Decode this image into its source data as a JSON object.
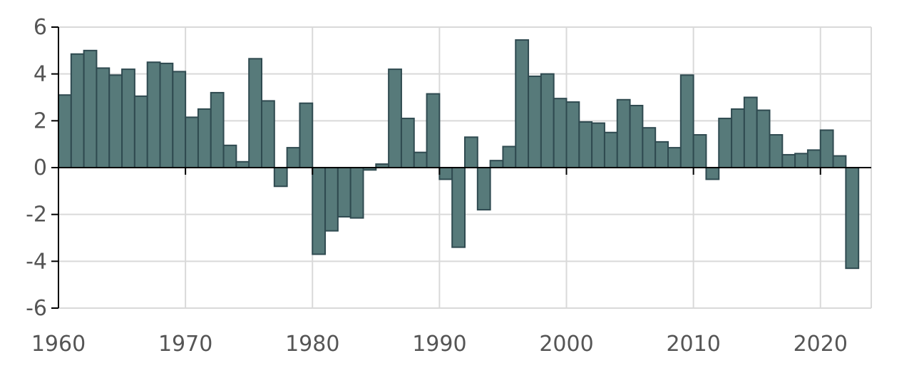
{
  "chart_data": {
    "type": "bar",
    "title": "",
    "xlabel": "",
    "ylabel": "",
    "ylim": [
      -6,
      6
    ],
    "xlim": [
      1960,
      2024
    ],
    "grid": true,
    "legend": "none",
    "x_ticks": [
      "1960",
      "1970",
      "1980",
      "1990",
      "2000",
      "2010",
      "2020"
    ],
    "y_ticks": [
      "6",
      "4",
      "2",
      "0",
      "-2",
      "-4",
      "-6"
    ],
    "colors": {
      "bar_fill": "#577a7a",
      "bar_stroke": "#2f4a50",
      "grid": "#d9d9d9",
      "axis": "#000000",
      "tick_text": "#555555"
    },
    "x": [
      1960,
      1961,
      1962,
      1963,
      1964,
      1965,
      1966,
      1967,
      1968,
      1969,
      1970,
      1971,
      1972,
      1973,
      1974,
      1975,
      1976,
      1977,
      1978,
      1979,
      1980,
      1981,
      1982,
      1983,
      1984,
      1985,
      1986,
      1987,
      1988,
      1989,
      1990,
      1991,
      1992,
      1993,
      1994,
      1995,
      1996,
      1997,
      1998,
      1999,
      2000,
      2001,
      2002,
      2003,
      2004,
      2005,
      2006,
      2007,
      2008,
      2009,
      2010,
      2011,
      2012,
      2013,
      2014,
      2015,
      2016,
      2017,
      2018,
      2019,
      2020,
      2021,
      2022
    ],
    "values": [
      3.1,
      4.85,
      5.0,
      4.25,
      3.95,
      4.2,
      3.05,
      4.5,
      4.45,
      4.1,
      2.15,
      2.5,
      3.2,
      0.95,
      0.25,
      4.65,
      2.85,
      -0.8,
      0.85,
      2.75,
      -3.7,
      -2.7,
      -2.1,
      -2.15,
      -0.1,
      0.15,
      4.2,
      2.1,
      0.65,
      3.15,
      -0.5,
      -3.4,
      1.3,
      -1.8,
      0.3,
      0.9,
      5.45,
      3.9,
      4.0,
      2.95,
      2.8,
      1.95,
      1.9,
      1.5,
      2.9,
      2.65,
      1.7,
      1.1,
      0.85,
      3.95,
      1.4,
      -0.5,
      2.1,
      2.5,
      3.0,
      2.45,
      1.4,
      0.55,
      0.6,
      0.75,
      1.6,
      0.5,
      -4.3
    ]
  }
}
